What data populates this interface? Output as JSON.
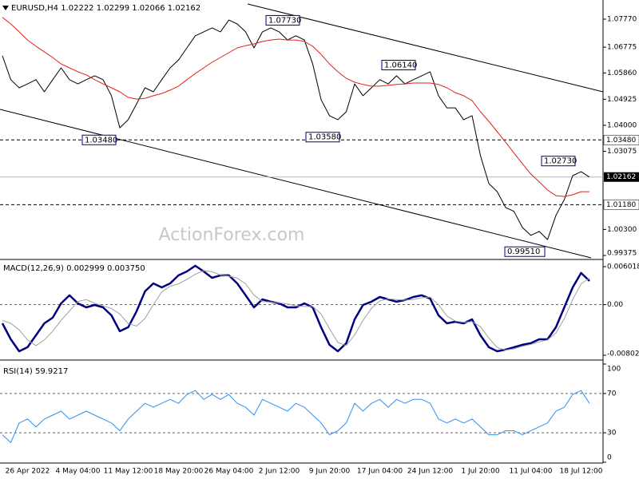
{
  "chart_data": [
    {
      "type": "line",
      "title": "EURUSD,H4 1.02222 1.02299 1.02066 1.02162",
      "watermark": "ActionForex.com",
      "categories": [
        null,
        null,
        null,
        "26 Apr 2022",
        null,
        null,
        null,
        null,
        null,
        "4 May 04:00",
        null,
        null,
        null,
        null,
        null,
        "11 May 12:00",
        null,
        null,
        null,
        null,
        null,
        "18 May 20:00",
        null,
        null,
        null,
        null,
        null,
        "26 May 04:00",
        null,
        null,
        null,
        null,
        null,
        "2 Jun 12:00",
        null,
        null,
        null,
        null,
        null,
        "9 Jun 20:00",
        null,
        null,
        null,
        null,
        null,
        "17 Jun 04:00",
        null,
        null,
        null,
        null,
        null,
        "24 Jun 12:00",
        null,
        null,
        null,
        null,
        null,
        "1 Jul 20:00",
        null,
        null,
        null,
        null,
        null,
        "11 Jul 04:00",
        null,
        null,
        null,
        null,
        null,
        "18 Jul 12:00",
        null
      ],
      "series": [
        {
          "color": "#000000",
          "values": [
            1.0647,
            1.0562,
            1.0533,
            1.0547,
            1.0562,
            1.0519,
            1.0562,
            1.0604,
            1.0562,
            1.0547,
            1.0562,
            1.0576,
            1.0562,
            1.0505,
            1.0391,
            1.042,
            1.0476,
            1.0533,
            1.0519,
            1.0562,
            1.0604,
            1.0632,
            1.0675,
            1.0718,
            1.0732,
            1.0746,
            1.0732,
            1.0774,
            1.076,
            1.0732,
            1.0675,
            1.0732,
            1.0746,
            1.0732,
            1.0703,
            1.0718,
            1.0703,
            1.0618,
            1.0491,
            1.0434,
            1.042,
            1.0448,
            1.0547,
            1.0505,
            1.0533,
            1.0562,
            1.0547,
            1.0576,
            1.0547,
            1.0562,
            1.0576,
            1.059,
            1.0505,
            1.0462,
            1.0462,
            1.042,
            1.0434,
            1.0292,
            1.0193,
            1.0164,
            1.0108,
            1.0094,
            1.0037,
            1.0009,
            1.0023,
            0.9994,
            1.008,
            1.0136,
            1.0221,
            1.0235,
            1.0216
          ]
        },
        {
          "color": "#e0201b",
          "values": [
            1.0783,
            1.076,
            1.0732,
            1.0703,
            1.0681,
            1.0661,
            1.0641,
            1.0618,
            1.0604,
            1.059,
            1.0579,
            1.0562,
            1.0547,
            1.0533,
            1.0519,
            1.0499,
            1.0493,
            1.0496,
            1.0505,
            1.0513,
            1.0525,
            1.0539,
            1.0562,
            1.0584,
            1.0604,
            1.0624,
            1.0641,
            1.0658,
            1.0675,
            1.0683,
            1.0689,
            1.0698,
            1.0703,
            1.0706,
            1.0703,
            1.0703,
            1.0698,
            1.0681,
            1.0652,
            1.0618,
            1.059,
            1.0567,
            1.0553,
            1.0545,
            1.0539,
            1.0539,
            1.0542,
            1.0545,
            1.0547,
            1.055,
            1.055,
            1.055,
            1.0545,
            1.0533,
            1.0516,
            1.0505,
            1.0488,
            1.0448,
            1.0414,
            1.0377,
            1.034,
            1.0301,
            1.0264,
            1.0227,
            1.0199,
            1.017,
            1.015,
            1.0147,
            1.0153,
            1.0164,
            1.0164
          ]
        }
      ],
      "ylim": [
        0.9929,
        1.08451
      ],
      "yticks": [
        {
          "value": 1.0777,
          "label": "1.07770"
        },
        {
          "value": 1.06775,
          "label": "1.06775"
        },
        {
          "value": 1.0586,
          "label": "1.05860"
        },
        {
          "value": 1.04925,
          "label": "1.04925"
        },
        {
          "value": 1.04,
          "label": "1.04000"
        },
        {
          "value": 1.03075,
          "label": "1.03075"
        },
        {
          "value": 1.003,
          "label": "1.00300"
        },
        {
          "value": 0.99375,
          "label": "0.99375"
        }
      ],
      "grid": false,
      "levels": [
        {
          "value": 1.0348,
          "label": "1.03480"
        },
        {
          "value": 1.0118,
          "label": "1.01180"
        }
      ],
      "last": {
        "value": 1.02162,
        "label": "1.02162"
      },
      "annotations": [
        {
          "value": 1.0773,
          "label": "1.07730"
        },
        {
          "value": 1.0614,
          "label": "1.06140"
        },
        {
          "value": 1.0348,
          "label": "1.03480"
        },
        {
          "value": 1.0358,
          "label": "1.03580"
        },
        {
          "value": 1.0273,
          "label": "1.02730"
        },
        {
          "value": 0.9951,
          "label": "0.99510"
        }
      ]
    },
    {
      "type": "line",
      "title": "MACD(12,26,9) 0.002999 0.003750",
      "series": [
        {
          "color": "#000080",
          "values": [
            -0.00296,
            -0.00549,
            -0.00739,
            -0.00675,
            -0.00486,
            -0.00296,
            -0.00207,
            0.0002,
            0.00147,
            0.0002,
            -0.00043,
            -5e-05,
            -0.00043,
            -0.0017,
            -0.00422,
            -0.00359,
            -0.00106,
            0.0021,
            0.00336,
            0.00273,
            0.00336,
            0.00463,
            0.00526,
            0.00615,
            0.00526,
            0.00425,
            0.00463,
            0.00463,
            0.00336,
            0.00147,
            -0.00043,
            0.00083,
            0.00046,
            0.0002,
            -0.00043,
            -0.00043,
            0.0002,
            -0.00043,
            -0.00359,
            -0.00637,
            -0.00739,
            -0.00612,
            -0.00233,
            -5e-05,
            0.00046,
            0.00121,
            0.00083,
            0.00046,
            0.00071,
            0.00121,
            0.00147,
            0.00096,
            -0.0017,
            -0.00296,
            -0.00271,
            -0.00296,
            -0.00233,
            -0.00486,
            -0.00675,
            -0.00739,
            -0.00713,
            -0.00675,
            -0.00637,
            -0.00612,
            -0.00549,
            -0.00549,
            -0.00359,
            -0.00043,
            0.00273,
            0.00501,
            0.00374
          ]
        },
        {
          "color": "#a0a0a0",
          "values": [
            -0.0025,
            -0.00296,
            -0.004,
            -0.0056,
            -0.0065,
            -0.0056,
            -0.0042,
            -0.0025,
            -0.001,
            0.0005,
            0.0008,
            0.0002,
            -0.0002,
            -0.0006,
            -0.0015,
            -0.003,
            -0.0034,
            -0.0022,
            0.0,
            0.002,
            0.0029,
            0.0033,
            0.004,
            0.0048,
            0.0054,
            0.0052,
            0.0047,
            0.0045,
            0.0042,
            0.0033,
            0.0015,
            0.0005,
            0.0004,
            0.0003,
            0.0001,
            -0.0002,
            -0.0003,
            -0.0003,
            -0.0015,
            -0.0038,
            -0.006,
            -0.0065,
            -0.0048,
            -0.0025,
            -0.0006,
            0.0006,
            0.0009,
            0.0008,
            0.0007,
            0.0008,
            0.0011,
            0.0012,
            0.0,
            -0.0018,
            -0.0026,
            -0.0028,
            -0.0027,
            -0.0035,
            -0.0053,
            -0.0068,
            -0.0072,
            -0.007,
            -0.0066,
            -0.0063,
            -0.0059,
            -0.0056,
            -0.0045,
            -0.0022,
            0.0008,
            0.0033,
            0.0042
          ]
        }
      ],
      "ylim": [
        -0.00853,
        0.0069
      ],
      "yticks": [
        {
          "value": -0.00802,
          "label": "-0.00802"
        },
        {
          "value": 0,
          "label": "0.00"
        },
        0.006018
      ],
      "grid": "inner"
    },
    {
      "type": "line",
      "title": "RSI(14) 59.9217",
      "series": [
        {
          "color": "#2f8ff0",
          "values": [
            28,
            20,
            40,
            44,
            36,
            44,
            48,
            52,
            44,
            48,
            52,
            48,
            44,
            40,
            32,
            44,
            52,
            60,
            56,
            60,
            64,
            60,
            69,
            73,
            64,
            69,
            64,
            69,
            60,
            56,
            48,
            64,
            60,
            56,
            52,
            60,
            56,
            48,
            40,
            28,
            32,
            40,
            60,
            52,
            60,
            64,
            56,
            64,
            60,
            64,
            64,
            60,
            44,
            40,
            44,
            40,
            44,
            36,
            28,
            28,
            32,
            32,
            28,
            32,
            36,
            40,
            52,
            56,
            69,
            73,
            60
          ]
        }
      ],
      "ylim": [
        0,
        100
      ],
      "yticks": [
        0,
        30,
        70,
        100
      ],
      "grid": "inner"
    }
  ]
}
